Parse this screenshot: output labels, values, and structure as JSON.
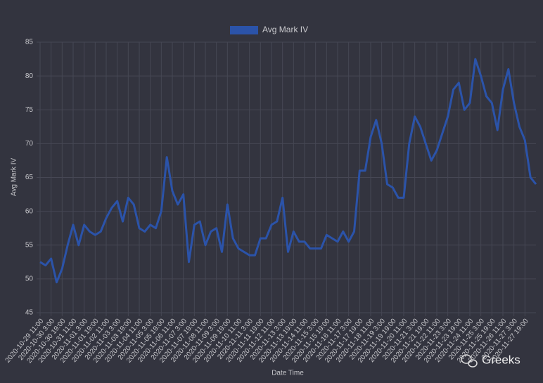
{
  "chart_data": {
    "type": "line",
    "legend_position": "top",
    "x_label": "Date Time",
    "y_label": "Avg Mark IV",
    "watermark": "Greeks",
    "grid": true,
    "ylim": [
      45,
      85
    ],
    "yticks": [
      45,
      50,
      55,
      60,
      65,
      70,
      75,
      80,
      85
    ],
    "categories": [
      "2020-10-29 11:00",
      null,
      "2020-10-30 3:00",
      null,
      "2020-10-30 19:00",
      null,
      "2020-10-31 11:00",
      null,
      "2020-11-01 3:00",
      null,
      "2020-11-01 19:00",
      null,
      "2020-11-02 11:00",
      null,
      "2020-11-03 3:00",
      null,
      "2020-11-03 19:00",
      null,
      "2020-11-04 11:00",
      null,
      "2020-11-05 3:00",
      null,
      "2020-11-05 19:00",
      null,
      "2020-11-06 11:00",
      null,
      "2020-11-07 3:00",
      null,
      "2020-11-07 19:00",
      null,
      "2020-11-08 11:00",
      null,
      "2020-11-09 3:00",
      null,
      "2020-11-09 19:00",
      null,
      "2020-11-10 11:00",
      null,
      "2020-11-11 3:00",
      null,
      "2020-11-11 19:00",
      null,
      "2020-11-12 11:00",
      null,
      "2020-11-13 3:00",
      null,
      "2020-11-13 19:00",
      null,
      "2020-11-14 11:00",
      null,
      "2020-11-15 3:00",
      null,
      "2020-11-15 19:00",
      null,
      "2020-11-16 11:00",
      null,
      "2020-11-17 3:00",
      null,
      "2020-11-17 19:00",
      null,
      "2020-11-18 11:00",
      null,
      "2020-11-19 3:00",
      null,
      "2020-11-19 19:00",
      null,
      "2020-11-20 11:00",
      null,
      "2020-11-21 3:00",
      null,
      "2020-11-21 19:00",
      null,
      "2020-11-22 11:00",
      null,
      "2020-11-23 3:00",
      null,
      "2020-11-23 19:00",
      null,
      "2020-11-24 11:00",
      null,
      "2020-11-25 3:00",
      null,
      "2020-11-25 19:00",
      null,
      "2020-11-26 11:00",
      null,
      "2020-11-27 3:00",
      null,
      "2020-11-27 19:00",
      null,
      null
    ],
    "series": [
      {
        "name": "Avg Mark IV",
        "color": "#2b53a9",
        "values": [
          52.5,
          52,
          53,
          49.5,
          51.5,
          55,
          58,
          55,
          58,
          57,
          56.5,
          57,
          59,
          60.5,
          61.5,
          58.5,
          62,
          61,
          57.5,
          57,
          58,
          57.5,
          60,
          68,
          63,
          61,
          62.5,
          52.5,
          58,
          58.5,
          55,
          57,
          57.5,
          54,
          61,
          56,
          54.5,
          54,
          53.5,
          53.5,
          56,
          56,
          58,
          58.5,
          62,
          54,
          57,
          55.5,
          55.5,
          54.5,
          54.5,
          54.5,
          56.5,
          56,
          55.5,
          57,
          55.5,
          57,
          66,
          66,
          71,
          73.5,
          70,
          64,
          63.5,
          62,
          62,
          70,
          74,
          72.5,
          70,
          67.5,
          69,
          71.5,
          74,
          78,
          79,
          75,
          76,
          82.5,
          80,
          77,
          76,
          72,
          78,
          81,
          76,
          72.5,
          70.5,
          65,
          64
        ]
      }
    ]
  }
}
